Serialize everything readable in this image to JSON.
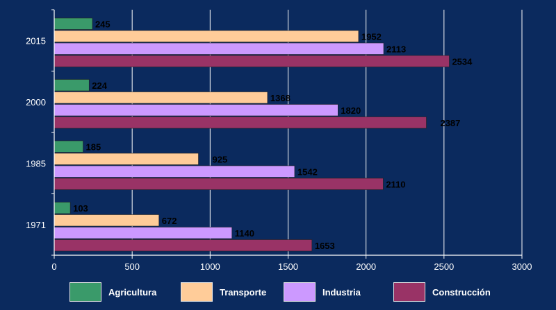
{
  "chart_data": {
    "type": "bar",
    "orientation": "horizontal",
    "categories": [
      "2015",
      "2000",
      "1985",
      "1971"
    ],
    "series": [
      {
        "name": "Agricultura",
        "color": "#3a9a6a",
        "values": [
          245,
          224,
          185,
          103
        ]
      },
      {
        "name": "Transporte",
        "color": "#ffcc99",
        "values": [
          1952,
          1368,
          925,
          672
        ]
      },
      {
        "name": "Industria",
        "color": "#cc99ff",
        "values": [
          2113,
          1820,
          1542,
          1140
        ]
      },
      {
        "name": "Construcción",
        "color": "#993366",
        "values": [
          2534,
          2387,
          2110,
          1653
        ]
      }
    ],
    "xlim": [
      0,
      3000
    ],
    "xticks": [
      0,
      500,
      1000,
      1500,
      2000,
      2500,
      3000
    ],
    "grid": true,
    "legend_position": "bottom",
    "title": "",
    "xlabel": "",
    "ylabel": ""
  },
  "colors": {
    "background": "#0b2a5e",
    "axis": "#ffffff",
    "text": "#ffffff",
    "label_text": "#000000"
  }
}
